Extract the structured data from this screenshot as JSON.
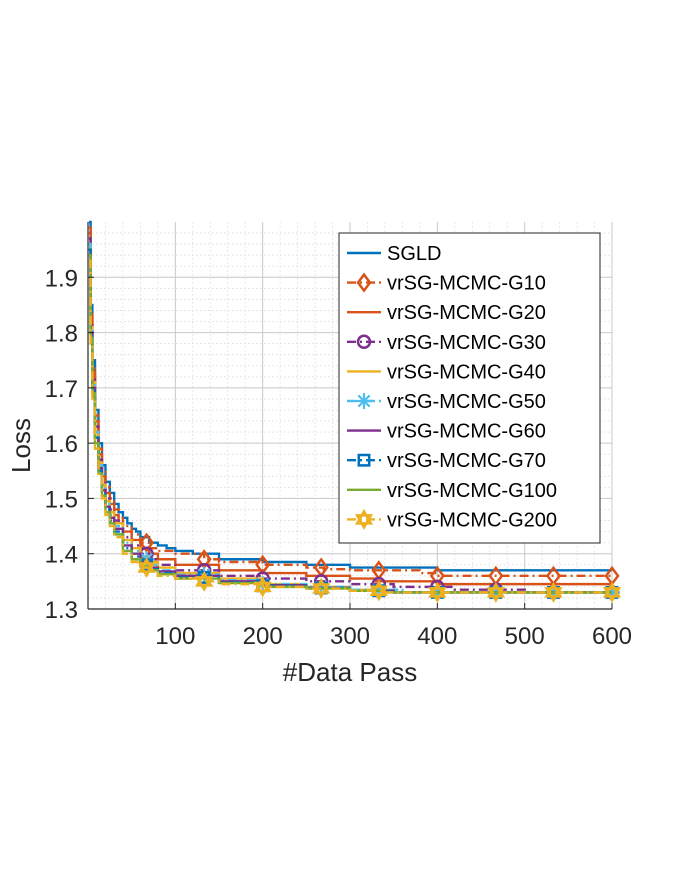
{
  "chart_data": {
    "type": "line",
    "title": "",
    "xlabel": "#Data Pass",
    "ylabel": "Loss",
    "xlim": [
      0,
      600
    ],
    "ylim": [
      1.3,
      2.0
    ],
    "xticks": [
      100,
      200,
      300,
      400,
      500,
      600
    ],
    "yticks": [
      1.3,
      1.4,
      1.5,
      1.6,
      1.7,
      1.8,
      1.9
    ],
    "xtick_labels": [
      "100",
      "200",
      "300",
      "400",
      "500",
      "600"
    ],
    "ytick_labels": [
      "1.3",
      "1.4",
      "1.5",
      "1.6",
      "1.7",
      "1.8",
      "1.9"
    ],
    "grid": true,
    "minor_grid": true,
    "legend_position": "top-right",
    "series": [
      {
        "name": "SGLD",
        "color": "#0072BD",
        "marker": "none",
        "dash": "solid",
        "points": [
          [
            1,
            2.0
          ],
          [
            3,
            1.85
          ],
          [
            5,
            1.75
          ],
          [
            8,
            1.66
          ],
          [
            12,
            1.6
          ],
          [
            16,
            1.56
          ],
          [
            20,
            1.53
          ],
          [
            25,
            1.51
          ],
          [
            30,
            1.49
          ],
          [
            35,
            1.475
          ],
          [
            40,
            1.465
          ],
          [
            45,
            1.455
          ],
          [
            50,
            1.445
          ],
          [
            55,
            1.44
          ],
          [
            60,
            1.43
          ],
          [
            70,
            1.42
          ],
          [
            80,
            1.415
          ],
          [
            90,
            1.41
          ],
          [
            100,
            1.405
          ],
          [
            120,
            1.4
          ],
          [
            150,
            1.39
          ],
          [
            200,
            1.385
          ],
          [
            250,
            1.38
          ],
          [
            300,
            1.375
          ],
          [
            380,
            1.375
          ],
          [
            400,
            1.37
          ],
          [
            600,
            1.37
          ]
        ]
      },
      {
        "name": "vrSG-MCMC-G10",
        "color": "#D95319",
        "marker": "diamond",
        "dash": "dashdot",
        "points": [
          [
            1,
            1.99
          ],
          [
            3,
            1.84
          ],
          [
            5,
            1.74
          ],
          [
            8,
            1.65
          ],
          [
            12,
            1.59
          ],
          [
            16,
            1.55
          ],
          [
            20,
            1.52
          ],
          [
            25,
            1.5
          ],
          [
            30,
            1.48
          ],
          [
            35,
            1.465
          ],
          [
            40,
            1.45
          ],
          [
            50,
            1.435
          ],
          [
            60,
            1.42
          ],
          [
            70,
            1.41
          ],
          [
            80,
            1.405
          ],
          [
            100,
            1.4
          ],
          [
            133,
            1.39
          ],
          [
            150,
            1.385
          ],
          [
            200,
            1.38
          ],
          [
            250,
            1.375
          ],
          [
            270,
            1.372
          ],
          [
            300,
            1.37
          ],
          [
            333,
            1.37
          ],
          [
            380,
            1.365
          ],
          [
            400,
            1.36
          ],
          [
            600,
            1.36
          ]
        ]
      },
      {
        "name": "vrSG-MCMC-G20",
        "color": "#D95319",
        "marker": "none",
        "dash": "solid",
        "points": [
          [
            1,
            1.98
          ],
          [
            3,
            1.83
          ],
          [
            5,
            1.73
          ],
          [
            8,
            1.64
          ],
          [
            12,
            1.58
          ],
          [
            16,
            1.54
          ],
          [
            20,
            1.51
          ],
          [
            25,
            1.49
          ],
          [
            30,
            1.47
          ],
          [
            35,
            1.455
          ],
          [
            40,
            1.44
          ],
          [
            50,
            1.425
          ],
          [
            60,
            1.41
          ],
          [
            70,
            1.4
          ],
          [
            80,
            1.39
          ],
          [
            100,
            1.38
          ],
          [
            150,
            1.37
          ],
          [
            200,
            1.365
          ],
          [
            250,
            1.36
          ],
          [
            300,
            1.355
          ],
          [
            330,
            1.35
          ],
          [
            380,
            1.35
          ],
          [
            400,
            1.345
          ],
          [
            600,
            1.345
          ]
        ]
      },
      {
        "name": "vrSG-MCMC-G30",
        "color": "#7E2F8E",
        "marker": "circle",
        "dash": "dashdot",
        "points": [
          [
            1,
            1.97
          ],
          [
            3,
            1.82
          ],
          [
            5,
            1.72
          ],
          [
            8,
            1.63
          ],
          [
            12,
            1.57
          ],
          [
            16,
            1.53
          ],
          [
            20,
            1.5
          ],
          [
            25,
            1.48
          ],
          [
            30,
            1.46
          ],
          [
            40,
            1.43
          ],
          [
            50,
            1.415
          ],
          [
            60,
            1.4
          ],
          [
            70,
            1.39
          ],
          [
            80,
            1.38
          ],
          [
            100,
            1.37
          ],
          [
            150,
            1.36
          ],
          [
            200,
            1.355
          ],
          [
            250,
            1.35
          ],
          [
            300,
            1.345
          ],
          [
            350,
            1.34
          ],
          [
            420,
            1.335
          ],
          [
            500,
            1.33
          ],
          [
            600,
            1.33
          ]
        ]
      },
      {
        "name": "vrSG-MCMC-G40",
        "color": "#EDB120",
        "marker": "none",
        "dash": "solid",
        "points": [
          [
            1,
            1.96
          ],
          [
            3,
            1.81
          ],
          [
            5,
            1.71
          ],
          [
            8,
            1.62
          ],
          [
            12,
            1.565
          ],
          [
            16,
            1.525
          ],
          [
            20,
            1.495
          ],
          [
            25,
            1.475
          ],
          [
            30,
            1.455
          ],
          [
            40,
            1.425
          ],
          [
            50,
            1.41
          ],
          [
            60,
            1.395
          ],
          [
            70,
            1.385
          ],
          [
            80,
            1.375
          ],
          [
            100,
            1.365
          ],
          [
            150,
            1.355
          ],
          [
            200,
            1.345
          ],
          [
            250,
            1.34
          ],
          [
            300,
            1.335
          ],
          [
            350,
            1.33
          ],
          [
            600,
            1.33
          ]
        ]
      },
      {
        "name": "vrSG-MCMC-G50",
        "color": "#4DBEEE",
        "marker": "asterisk",
        "dash": "dashdot",
        "points": [
          [
            1,
            1.96
          ],
          [
            3,
            1.81
          ],
          [
            5,
            1.71
          ],
          [
            8,
            1.62
          ],
          [
            12,
            1.56
          ],
          [
            16,
            1.52
          ],
          [
            20,
            1.49
          ],
          [
            25,
            1.47
          ],
          [
            30,
            1.45
          ],
          [
            40,
            1.42
          ],
          [
            50,
            1.405
          ],
          [
            60,
            1.39
          ],
          [
            70,
            1.38
          ],
          [
            80,
            1.37
          ],
          [
            100,
            1.362
          ],
          [
            150,
            1.352
          ],
          [
            200,
            1.345
          ],
          [
            250,
            1.34
          ],
          [
            300,
            1.335
          ],
          [
            333,
            1.335
          ],
          [
            360,
            1.33
          ],
          [
            600,
            1.33
          ]
        ]
      },
      {
        "name": "vrSG-MCMC-G60",
        "color": "#7E2F8E",
        "marker": "none",
        "dash": "solid",
        "points": [
          [
            1,
            1.95
          ],
          [
            3,
            1.8
          ],
          [
            5,
            1.7
          ],
          [
            8,
            1.61
          ],
          [
            12,
            1.555
          ],
          [
            16,
            1.515
          ],
          [
            20,
            1.485
          ],
          [
            25,
            1.465
          ],
          [
            30,
            1.445
          ],
          [
            40,
            1.415
          ],
          [
            50,
            1.4
          ],
          [
            60,
            1.385
          ],
          [
            70,
            1.375
          ],
          [
            80,
            1.368
          ],
          [
            100,
            1.36
          ],
          [
            150,
            1.35
          ],
          [
            200,
            1.343
          ],
          [
            250,
            1.338
          ],
          [
            300,
            1.333
          ],
          [
            350,
            1.33
          ],
          [
            600,
            1.33
          ]
        ]
      },
      {
        "name": "vrSG-MCMC-G70",
        "color": "#0072BD",
        "marker": "square",
        "dash": "dashdot",
        "points": [
          [
            1,
            1.95
          ],
          [
            3,
            1.8
          ],
          [
            5,
            1.7
          ],
          [
            8,
            1.61
          ],
          [
            12,
            1.55
          ],
          [
            16,
            1.51
          ],
          [
            20,
            1.48
          ],
          [
            25,
            1.46
          ],
          [
            30,
            1.44
          ],
          [
            40,
            1.41
          ],
          [
            50,
            1.395
          ],
          [
            60,
            1.38
          ],
          [
            70,
            1.372
          ],
          [
            80,
            1.365
          ],
          [
            100,
            1.357
          ],
          [
            133,
            1.357
          ],
          [
            150,
            1.348
          ],
          [
            200,
            1.342
          ],
          [
            250,
            1.338
          ],
          [
            300,
            1.333
          ],
          [
            350,
            1.33
          ],
          [
            600,
            1.33
          ]
        ]
      },
      {
        "name": "vrSG-MCMC-G100",
        "color": "#77AC30",
        "marker": "none",
        "dash": "solid",
        "points": [
          [
            1,
            1.94
          ],
          [
            3,
            1.79
          ],
          [
            5,
            1.69
          ],
          [
            8,
            1.6
          ],
          [
            12,
            1.545
          ],
          [
            16,
            1.505
          ],
          [
            20,
            1.475
          ],
          [
            25,
            1.455
          ],
          [
            30,
            1.435
          ],
          [
            40,
            1.405
          ],
          [
            50,
            1.39
          ],
          [
            60,
            1.377
          ],
          [
            70,
            1.37
          ],
          [
            80,
            1.363
          ],
          [
            100,
            1.355
          ],
          [
            150,
            1.347
          ],
          [
            200,
            1.34
          ],
          [
            250,
            1.337
          ],
          [
            300,
            1.333
          ],
          [
            340,
            1.33
          ],
          [
            600,
            1.33
          ]
        ]
      },
      {
        "name": "vrSG-MCMC-G200",
        "color": "#EDB120",
        "marker": "hexagram",
        "dash": "dashdot",
        "points": [
          [
            1,
            1.93
          ],
          [
            3,
            1.78
          ],
          [
            5,
            1.68
          ],
          [
            8,
            1.59
          ],
          [
            12,
            1.54
          ],
          [
            16,
            1.5
          ],
          [
            20,
            1.47
          ],
          [
            25,
            1.45
          ],
          [
            30,
            1.43
          ],
          [
            40,
            1.4
          ],
          [
            50,
            1.385
          ],
          [
            60,
            1.375
          ],
          [
            70,
            1.368
          ],
          [
            80,
            1.36
          ],
          [
            100,
            1.355
          ],
          [
            133,
            1.35
          ],
          [
            150,
            1.345
          ],
          [
            200,
            1.34
          ],
          [
            250,
            1.337
          ],
          [
            300,
            1.333
          ],
          [
            340,
            1.33
          ],
          [
            600,
            1.33
          ]
        ]
      }
    ]
  }
}
